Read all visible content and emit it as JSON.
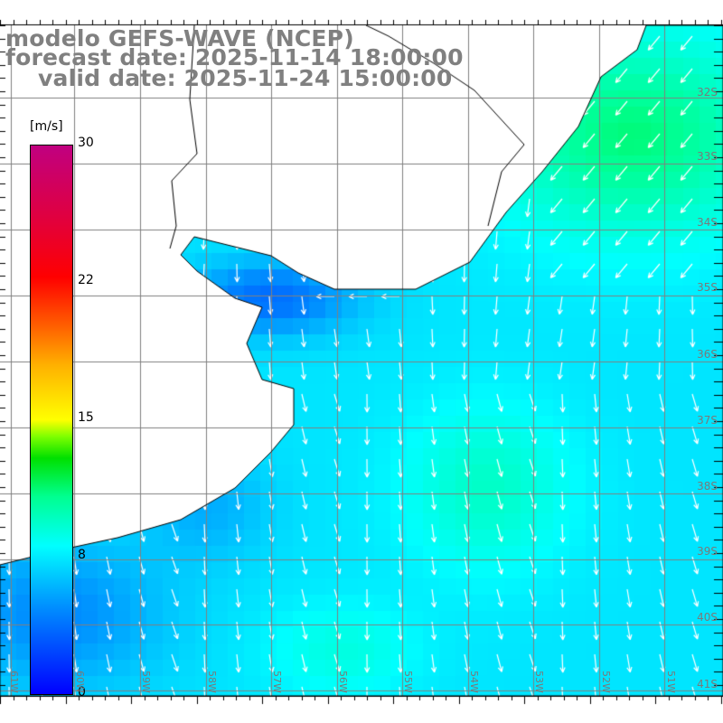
{
  "title": {
    "model": "modelo GEFS-WAVE (NCEP)",
    "forecast": "forecast date: 2025-11-14 18:00:00",
    "valid": "valid date: 2025-11-24 15:00:00"
  },
  "colorbar": {
    "unit": "[m/s]",
    "ticks": [
      "30",
      "22",
      "15",
      "8",
      "0"
    ],
    "range": [
      0,
      30
    ]
  },
  "lat_labels": [
    "32S",
    "33S",
    "34S",
    "35S",
    "36S",
    "37S",
    "38S",
    "39S",
    "40S",
    "41S"
  ],
  "lon_labels": [
    "61W",
    "60W",
    "59W",
    "58W",
    "57W",
    "56W",
    "55W",
    "54W",
    "53W",
    "52W",
    "51W"
  ],
  "colors": {
    "land": "#ffffff",
    "grid": "#808080",
    "arrow": "#ffffff",
    "coast": "#000000"
  }
}
